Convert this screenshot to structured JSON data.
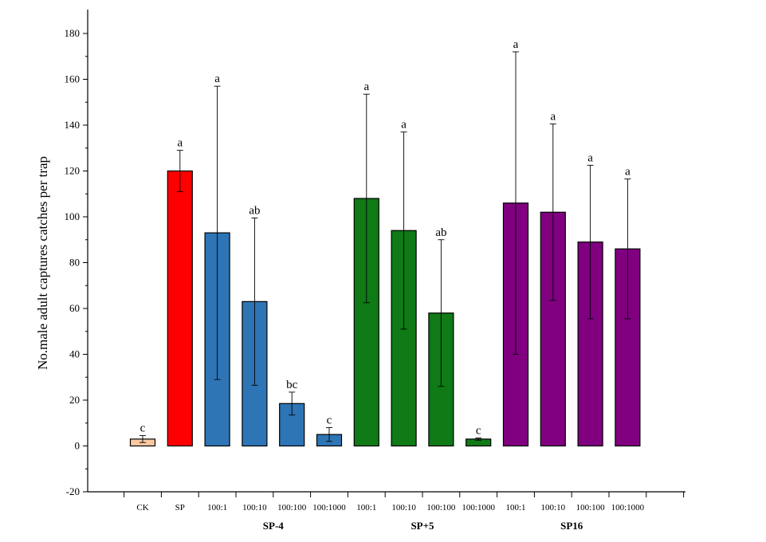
{
  "chart_data": {
    "type": "bar",
    "title": "",
    "ylabel": "No.male adult captures catches per trap",
    "xlabel": "",
    "ylim": [
      -20,
      190
    ],
    "yticks": [
      -20,
      0,
      20,
      40,
      60,
      80,
      100,
      120,
      140,
      160,
      180
    ],
    "grid": false,
    "bars": [
      {
        "category": "CK",
        "group": "",
        "value": 3,
        "error": 1.5,
        "letter": "c",
        "color": "#f9c9a4"
      },
      {
        "category": "SP",
        "group": "",
        "value": 120,
        "error": 9,
        "letter": "a",
        "color": "#ff0000"
      },
      {
        "category": "100:1",
        "group": "SP-4",
        "value": 93,
        "error": 64,
        "letter": "a",
        "color": "#2e75b6"
      },
      {
        "category": "100:10",
        "group": "SP-4",
        "value": 63,
        "error": 36.5,
        "letter": "ab",
        "color": "#2e75b6"
      },
      {
        "category": "100:100",
        "group": "SP-4",
        "value": 18.5,
        "error": 5,
        "letter": "bc",
        "color": "#2e75b6"
      },
      {
        "category": "100:1000",
        "group": "SP-4",
        "value": 5,
        "error": 3,
        "letter": "c",
        "color": "#2e75b6"
      },
      {
        "category": "100:1",
        "group": "SP+5",
        "value": 108,
        "error": 45.5,
        "letter": "a",
        "color": "#0f7a16"
      },
      {
        "category": "100:10",
        "group": "SP+5",
        "value": 94,
        "error": 43,
        "letter": "a",
        "color": "#0f7a16"
      },
      {
        "category": "100:100",
        "group": "SP+5",
        "value": 58,
        "error": 32,
        "letter": "ab",
        "color": "#0f7a16"
      },
      {
        "category": "100:1000",
        "group": "SP+5",
        "value": 3,
        "error": 0.5,
        "letter": "c",
        "color": "#0f7a16"
      },
      {
        "category": "100:1",
        "group": "SP16",
        "value": 106,
        "error": 66,
        "letter": "a",
        "color": "#800080"
      },
      {
        "category": "100:10",
        "group": "SP16",
        "value": 102,
        "error": 38.5,
        "letter": "a",
        "color": "#800080"
      },
      {
        "category": "100:100",
        "group": "SP16",
        "value": 89,
        "error": 33.5,
        "letter": "a",
        "color": "#800080"
      },
      {
        "category": "100:1000",
        "group": "SP16",
        "value": 86,
        "error": 30.5,
        "letter": "a",
        "color": "#800080"
      }
    ],
    "groups": [
      {
        "label": "SP-4",
        "members": [
          2,
          3,
          4,
          5
        ]
      },
      {
        "label": "SP+5",
        "members": [
          6,
          7,
          8,
          9
        ]
      },
      {
        "label": "SP16",
        "members": [
          10,
          11,
          12,
          13
        ]
      }
    ]
  }
}
